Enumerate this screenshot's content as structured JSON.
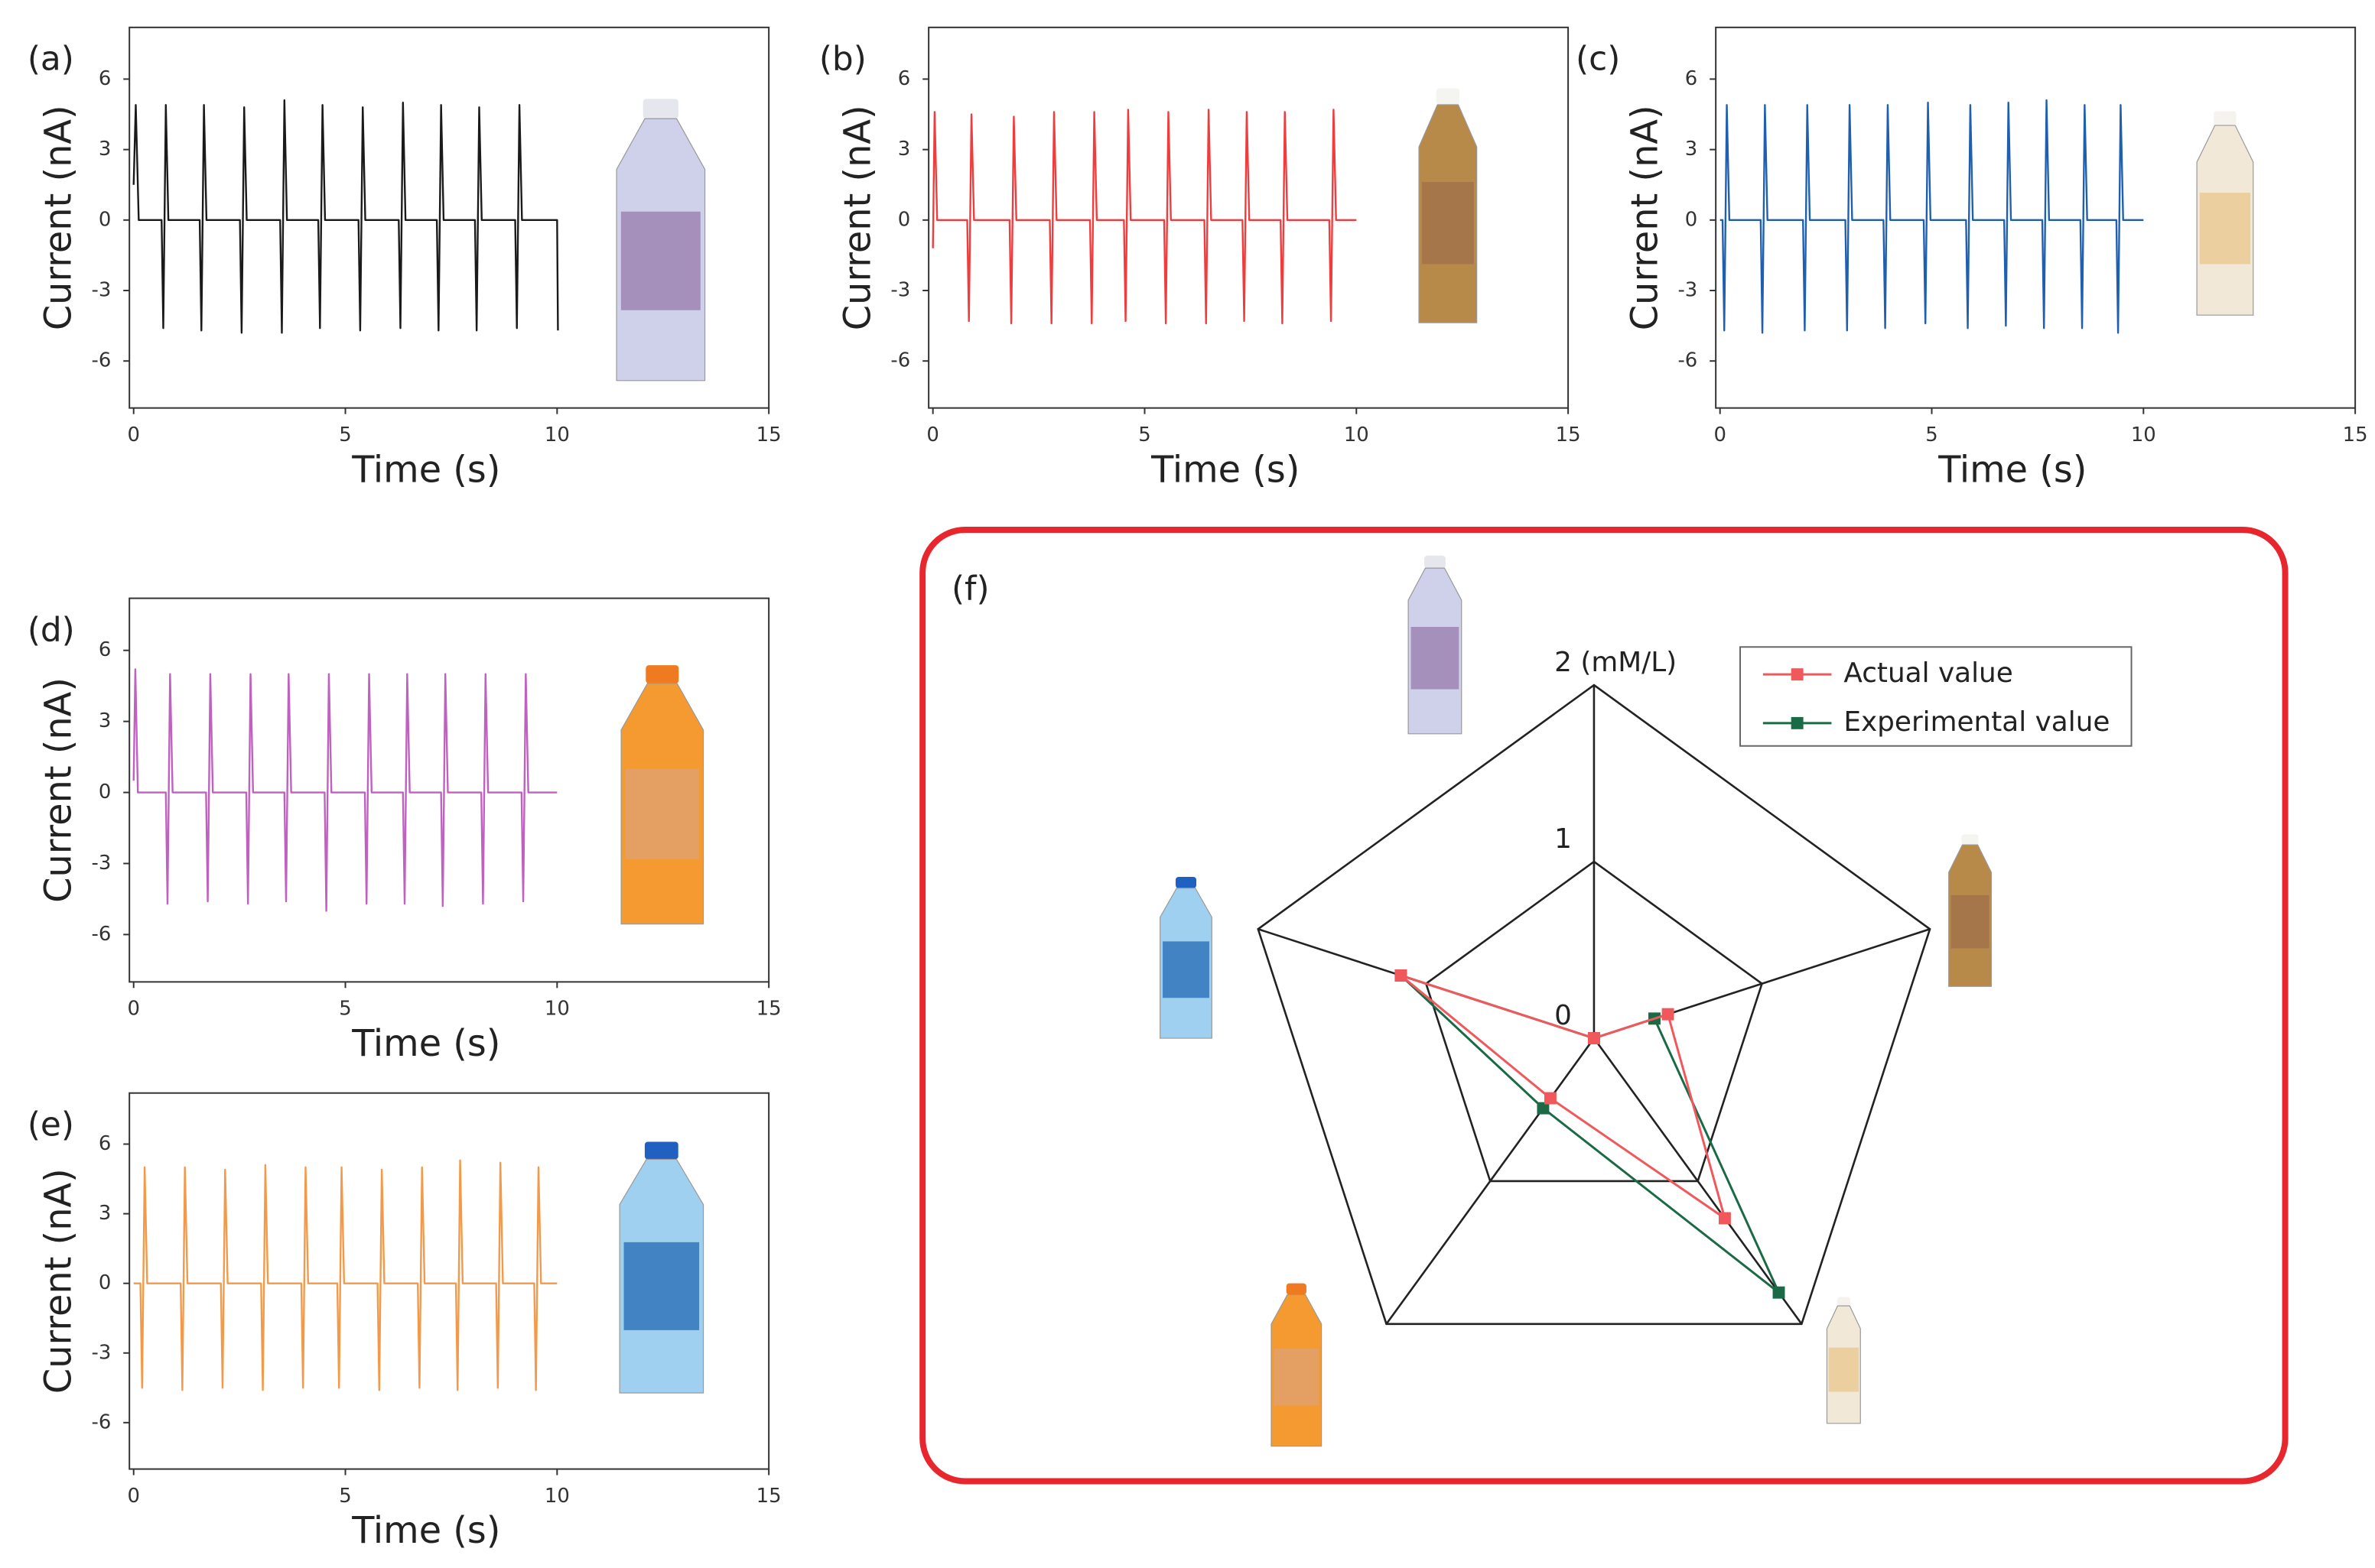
{
  "chart_data": [
    {
      "type": "line",
      "label": "(a)",
      "xlabel": "Time (s)",
      "ylabel": "Current (nA)",
      "color": "#1a1a1a",
      "xlim": [
        -0.1,
        15
      ],
      "ylim": [
        -8,
        8.2
      ],
      "xticks": [
        0,
        5,
        10,
        15
      ],
      "yticks": [
        -6,
        -3,
        0,
        3,
        6
      ],
      "x": [
        0,
        0.05,
        0.12,
        0.66,
        0.7,
        0.76,
        0.82,
        1.56,
        1.6,
        1.66,
        1.72,
        2.51,
        2.55,
        2.61,
        2.67,
        3.46,
        3.5,
        3.56,
        3.62,
        4.36,
        4.4,
        4.46,
        4.52,
        5.31,
        5.35,
        5.41,
        5.47,
        6.26,
        6.3,
        6.36,
        6.42,
        7.16,
        7.2,
        7.26,
        7.32,
        8.06,
        8.1,
        8.16,
        8.22,
        9.01,
        9.05,
        9.11,
        9.17,
        10,
        10.02
      ],
      "values": [
        1.5,
        4.9,
        0,
        0,
        -4.6,
        4.9,
        0,
        0,
        -4.7,
        4.9,
        0,
        0,
        -4.8,
        4.8,
        0,
        0,
        -4.8,
        5.1,
        0,
        0,
        -4.6,
        4.9,
        0,
        0,
        -4.7,
        4.8,
        0,
        0,
        -4.6,
        5.0,
        0,
        0,
        -4.7,
        4.9,
        0,
        0,
        -4.7,
        4.8,
        0,
        0,
        -4.6,
        4.9,
        0,
        0,
        -4.7
      ]
    },
    {
      "type": "line",
      "label": "(b)",
      "xlabel": "Time (s)",
      "ylabel": "Current (nA)",
      "color": "#f03c3c",
      "xlim": [
        -0.1,
        15
      ],
      "ylim": [
        -8,
        8.2
      ],
      "xticks": [
        0,
        5,
        10,
        15
      ],
      "yticks": [
        -6,
        -3,
        0,
        3,
        6
      ],
      "x": [
        0,
        0.04,
        0.1,
        0.81,
        0.85,
        0.91,
        0.97,
        1.81,
        1.85,
        1.91,
        1.97,
        2.76,
        2.8,
        2.86,
        2.92,
        3.71,
        3.75,
        3.81,
        3.87,
        4.51,
        4.55,
        4.61,
        4.67,
        5.46,
        5.5,
        5.56,
        5.62,
        6.41,
        6.45,
        6.51,
        6.57,
        7.31,
        7.35,
        7.41,
        7.47,
        8.21,
        8.25,
        8.31,
        8.37,
        9.36,
        9.4,
        9.46,
        9.52,
        10
      ],
      "values": [
        -1.2,
        4.6,
        0,
        0,
        -4.3,
        4.5,
        0,
        0,
        -4.4,
        4.4,
        0,
        0,
        -4.4,
        4.6,
        0,
        0,
        -4.4,
        4.6,
        0,
        0,
        -4.3,
        4.7,
        0,
        0,
        -4.4,
        4.6,
        0,
        0,
        -4.4,
        4.7,
        0,
        0,
        -4.3,
        4.6,
        0,
        0,
        -4.4,
        4.6,
        0,
        0,
        -4.3,
        4.7,
        0,
        0
      ]
    },
    {
      "type": "line",
      "label": "(c)",
      "xlabel": "Time (s)",
      "ylabel": "Current (nA)",
      "color": "#1f5fb0",
      "xlim": [
        -0.1,
        15
      ],
      "ylim": [
        -8,
        8.2
      ],
      "xticks": [
        0,
        5,
        10,
        15
      ],
      "yticks": [
        -6,
        -3,
        0,
        3,
        6
      ],
      "x": [
        0,
        0.06,
        0.1,
        0.16,
        0.22,
        0.96,
        1.0,
        1.06,
        1.12,
        1.96,
        2.0,
        2.06,
        2.12,
        2.96,
        3.0,
        3.06,
        3.12,
        3.86,
        3.9,
        3.96,
        4.02,
        4.81,
        4.85,
        4.91,
        4.97,
        5.81,
        5.85,
        5.91,
        5.97,
        6.71,
        6.75,
        6.81,
        6.87,
        7.61,
        7.65,
        7.71,
        7.77,
        8.51,
        8.55,
        8.61,
        8.67,
        9.36,
        9.4,
        9.46,
        9.52,
        10
      ],
      "values": [
        0,
        0,
        -4.7,
        4.9,
        0,
        0,
        -4.8,
        4.9,
        0,
        0,
        -4.7,
        4.9,
        0,
        0,
        -4.7,
        4.9,
        0,
        0,
        -4.6,
        4.9,
        0,
        0,
        -4.4,
        5.0,
        0,
        0,
        -4.6,
        4.9,
        0,
        0,
        -4.5,
        5.0,
        0,
        0,
        -4.6,
        5.1,
        0,
        0,
        -4.6,
        4.9,
        0,
        0,
        -4.8,
        4.9,
        0,
        0
      ]
    },
    {
      "type": "line",
      "label": "(d)",
      "xlabel": "Time (s)",
      "ylabel": "Current (nA)",
      "color": "#c060c0",
      "xlim": [
        -0.1,
        15
      ],
      "ylim": [
        -8,
        8.2
      ],
      "xticks": [
        0,
        5,
        10,
        15
      ],
      "yticks": [
        -6,
        -3,
        0,
        3,
        6
      ],
      "x": [
        0,
        0.04,
        0.1,
        0.76,
        0.8,
        0.86,
        0.92,
        1.71,
        1.75,
        1.81,
        1.87,
        2.66,
        2.7,
        2.76,
        2.82,
        3.56,
        3.6,
        3.66,
        3.72,
        4.51,
        4.55,
        4.61,
        4.67,
        5.46,
        5.5,
        5.56,
        5.62,
        6.36,
        6.4,
        6.46,
        6.52,
        7.26,
        7.3,
        7.36,
        7.42,
        8.21,
        8.25,
        8.31,
        8.37,
        9.16,
        9.2,
        9.26,
        9.32,
        10
      ],
      "values": [
        0.5,
        5.2,
        0,
        0,
        -4.7,
        5.0,
        0,
        0,
        -4.6,
        5.0,
        0,
        0,
        -4.7,
        5.0,
        0,
        0,
        -4.6,
        5.0,
        0,
        0,
        -5.0,
        5.0,
        0,
        0,
        -4.7,
        5.0,
        0,
        0,
        -4.7,
        5.0,
        0,
        0,
        -4.8,
        5.0,
        0,
        0,
        -4.7,
        5.0,
        0,
        0,
        -4.6,
        5.0,
        0,
        0
      ]
    },
    {
      "type": "line",
      "label": "(e)",
      "xlabel": "Time (s)",
      "ylabel": "Current (nA)",
      "color": "#f39a4a",
      "xlim": [
        -0.1,
        15
      ],
      "ylim": [
        -8,
        8.2
      ],
      "xticks": [
        0,
        5,
        10,
        15
      ],
      "yticks": [
        -6,
        -3,
        0,
        3,
        6
      ],
      "x": [
        0,
        0.16,
        0.2,
        0.26,
        0.32,
        1.11,
        1.15,
        1.21,
        1.27,
        2.06,
        2.1,
        2.16,
        2.22,
        3.01,
        3.05,
        3.11,
        3.17,
        3.96,
        4.0,
        4.06,
        4.12,
        4.81,
        4.85,
        4.91,
        4.97,
        5.76,
        5.8,
        5.86,
        5.92,
        6.71,
        6.75,
        6.81,
        6.87,
        7.61,
        7.65,
        7.71,
        7.77,
        8.56,
        8.6,
        8.66,
        8.72,
        9.46,
        9.5,
        9.56,
        9.62,
        10
      ],
      "values": [
        0,
        0,
        -4.5,
        5.0,
        0,
        0,
        -4.6,
        5.0,
        0,
        0,
        -4.5,
        4.9,
        0,
        0,
        -4.6,
        5.1,
        0,
        0,
        -4.5,
        5.0,
        0,
        0,
        -4.5,
        5.0,
        0,
        0,
        -4.6,
        4.9,
        0,
        0,
        -4.5,
        5.0,
        0,
        0,
        -4.6,
        5.3,
        0,
        0,
        -4.5,
        5.2,
        0,
        0,
        -4.6,
        5.0,
        0,
        0
      ]
    },
    {
      "type": "radar",
      "label": "(f)",
      "rlim": [
        0,
        2
      ],
      "rticks": [
        0,
        1,
        {
          "value": 2,
          "label": "2 (mM/L)"
        }
      ],
      "grid": true,
      "legend": "upper right",
      "series": [
        {
          "name": "Actual value",
          "color": "#f0585c",
          "values": [
            0,
            0.44,
            1.26,
            0.42,
            1.15
          ]
        },
        {
          "name": "Experimental value",
          "color": "#1a6b45",
          "values": [
            0,
            0.36,
            1.78,
            0.49,
            1.15
          ]
        }
      ]
    }
  ]
}
